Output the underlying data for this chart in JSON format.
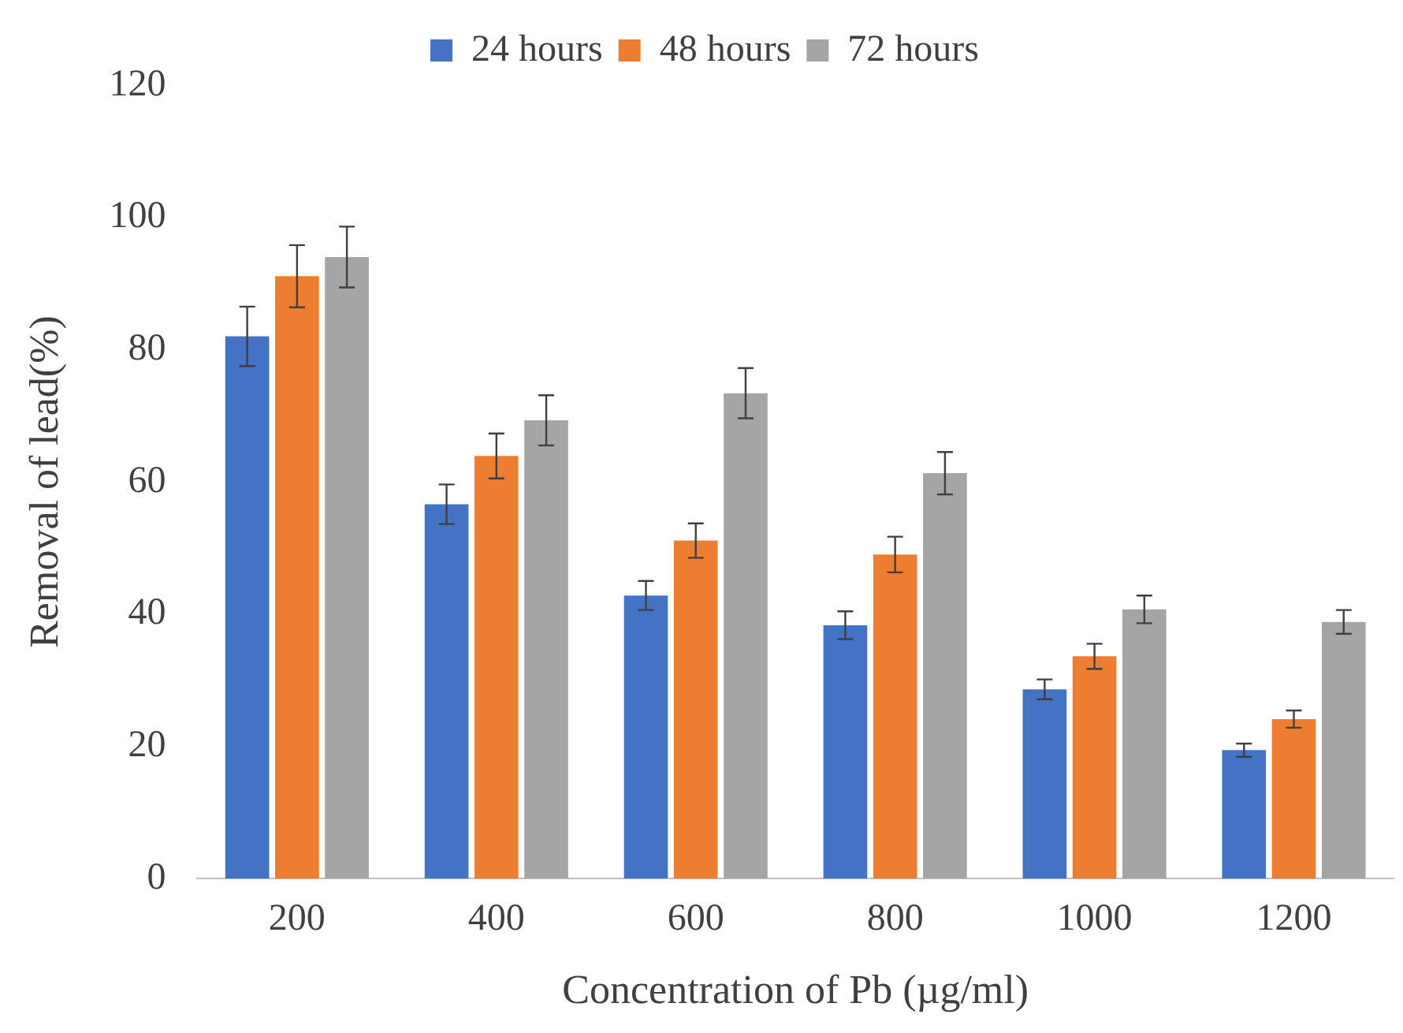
{
  "chart_data": {
    "type": "bar",
    "xlabel": "Concentration of Pb (µg/ml)",
    "ylabel": "Removal of lead(%)",
    "categories": [
      "200",
      "400",
      "600",
      "800",
      "1000",
      "1200"
    ],
    "series": [
      {
        "name": "24 hours",
        "color": "#4472c4",
        "values": [
          82,
          56.6,
          42.8,
          38.3,
          28.6,
          19.4
        ],
        "errors": [
          4.5,
          3,
          2.2,
          2.1,
          1.5,
          1
        ]
      },
      {
        "name": "48 hours",
        "color": "#ed7d31",
        "values": [
          91.1,
          63.9,
          51.1,
          49,
          33.6,
          24.1
        ],
        "errors": [
          4.7,
          3.4,
          2.6,
          2.7,
          1.9,
          1.3
        ]
      },
      {
        "name": "72 hours",
        "color": "#a5a5a5",
        "values": [
          94,
          69.3,
          73.4,
          61.3,
          40.7,
          38.8
        ],
        "errors": [
          4.6,
          3.8,
          3.8,
          3.2,
          2.1,
          1.8
        ]
      }
    ],
    "ylim": [
      0,
      120
    ],
    "yticks": [
      0,
      20,
      40,
      60,
      80,
      100,
      120
    ],
    "grid": false,
    "legend": "top"
  }
}
